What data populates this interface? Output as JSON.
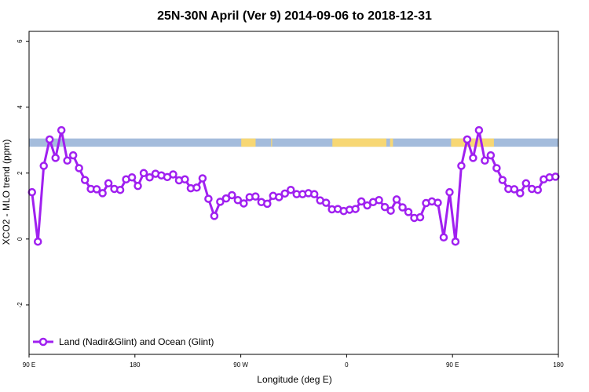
{
  "chart_data": {
    "type": "line",
    "title": "25N-30N April (Ver 9)   2014-09-06 to 2018-12-31",
    "xlabel": "Longitude (deg E)",
    "ylabel": "XCO2 - MLO trend (ppm)",
    "xlim": [
      90,
      540
    ],
    "ylim": [
      -3.5,
      6.3
    ],
    "x_ticks": [
      {
        "value": 90,
        "label": "90 E"
      },
      {
        "value": 180,
        "label": "180"
      },
      {
        "value": 270,
        "label": "90 W"
      },
      {
        "value": 360,
        "label": "0"
      },
      {
        "value": 450,
        "label": "90 E"
      },
      {
        "value": 540,
        "label": "180"
      }
    ],
    "y_ticks": [
      {
        "value": -2,
        "label": "-2"
      },
      {
        "value": 0,
        "label": "0"
      },
      {
        "value": 2,
        "label": "2"
      },
      {
        "value": 4,
        "label": "4"
      },
      {
        "value": 6,
        "label": "6"
      }
    ],
    "legend": {
      "position": "bottom-left"
    },
    "series": [
      {
        "name": "Land (Nadir&Glint) and Ocean (Glint)",
        "color": "#a020f0",
        "x": [
          92.5,
          97.5,
          102.5,
          107.5,
          112.5,
          117.5,
          122.5,
          127.5,
          132.5,
          137.5,
          142.5,
          147.5,
          152.5,
          157.5,
          162.5,
          167.5,
          172.5,
          177.5,
          182.5,
          187.5,
          192.5,
          197.5,
          202.5,
          207.5,
          212.5,
          217.5,
          222.5,
          227.5,
          232.5,
          237.5,
          242.5,
          247.5,
          252.5,
          257.5,
          262.5,
          267.5,
          272.5,
          277.5,
          282.5,
          287.5,
          292.5,
          297.5,
          302.5,
          307.5,
          312.5,
          317.5,
          322.5,
          327.5,
          332.5,
          337.5,
          342.5,
          347.5,
          352.5,
          357.5,
          362.5,
          367.5,
          372.5,
          377.5,
          382.5,
          387.5,
          392.5,
          397.5,
          402.5,
          407.5,
          412.5,
          417.5,
          422.5,
          427.5,
          432.5,
          437.5,
          442.5,
          447.5,
          452.5,
          457.5,
          462.5,
          467.5,
          472.5,
          477.5,
          482.5,
          487.5,
          492.5,
          497.5,
          502.5,
          507.5,
          512.5,
          517.5,
          522.5,
          527.5,
          532.5,
          537.5
        ],
        "y": [
          1.42,
          -0.08,
          2.22,
          3.02,
          2.46,
          3.3,
          2.38,
          2.54,
          2.15,
          1.79,
          1.52,
          1.51,
          1.39,
          1.69,
          1.52,
          1.49,
          1.81,
          1.87,
          1.61,
          2.0,
          1.87,
          1.98,
          1.93,
          1.88,
          1.96,
          1.78,
          1.81,
          1.54,
          1.56,
          1.84,
          1.22,
          0.7,
          1.13,
          1.23,
          1.33,
          1.18,
          1.08,
          1.27,
          1.29,
          1.12,
          1.07,
          1.31,
          1.27,
          1.38,
          1.49,
          1.36,
          1.36,
          1.39,
          1.36,
          1.17,
          1.1,
          0.9,
          0.91,
          0.85,
          0.89,
          0.91,
          1.14,
          1.02,
          1.12,
          1.18,
          0.97,
          0.86,
          1.2,
          0.96,
          0.82,
          0.64,
          0.66,
          1.09,
          1.14,
          1.1,
          0.05,
          1.42,
          -0.08,
          2.22,
          3.02,
          2.46,
          3.3,
          2.38,
          2.54,
          2.15,
          1.79,
          1.52,
          1.51,
          1.39,
          1.69,
          1.52,
          1.49,
          1.81,
          1.87,
          1.89
        ]
      }
    ],
    "surface_band": {
      "y_range": [
        2.8,
        3.05
      ],
      "ocean_color": "#a4bcdc",
      "land_color": "#f7d774",
      "land_segments": [
        [
          270.4,
          282.6
        ],
        [
          295.8,
          296.6
        ],
        [
          347.9,
          393.8
        ],
        [
          396.9,
          399.4
        ],
        [
          448.8,
          485.2
        ]
      ]
    }
  }
}
